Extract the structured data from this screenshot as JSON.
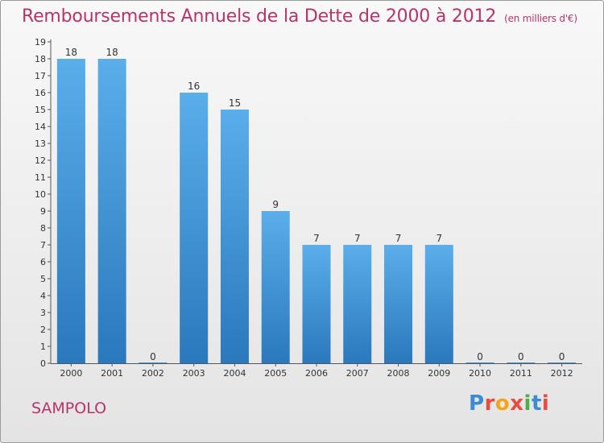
{
  "header": {
    "title": "Remboursements Annuels de la Dette de 2000 à 2012",
    "unit": "(en milliers d'€)"
  },
  "commune": "SAMPOLO",
  "logo": {
    "letters": [
      {
        "ch": "P",
        "color": "#3a8ad6"
      },
      {
        "ch": "r",
        "color": "#e84c3d"
      },
      {
        "ch": "o",
        "color": "#f2a51a"
      },
      {
        "ch": "x",
        "color": "#e84c3d"
      },
      {
        "ch": "i",
        "color": "#4bb04a"
      },
      {
        "ch": "t",
        "color": "#3a8ad6"
      },
      {
        "ch": "i",
        "color": "#e84c3d"
      }
    ]
  },
  "chart_data": {
    "type": "bar",
    "title": "Remboursements Annuels de la Dette de 2000 à 2012",
    "subtitle": "(en milliers d'€)",
    "categories": [
      "2000",
      "2001",
      "2002",
      "2003",
      "2004",
      "2005",
      "2006",
      "2007",
      "2008",
      "2009",
      "2010",
      "2011",
      "2012"
    ],
    "values": [
      18,
      18,
      0,
      16,
      15,
      9,
      7,
      7,
      7,
      7,
      0,
      0,
      0
    ],
    "yticks": [
      0,
      1,
      2,
      3,
      4,
      5,
      6,
      7,
      8,
      9,
      10,
      11,
      12,
      13,
      14,
      15,
      16,
      17,
      18,
      19
    ],
    "ylim": [
      0,
      19
    ],
    "grid": false,
    "bar_color": "#4a9ee0",
    "bar_color_dark": "#2878bf"
  }
}
